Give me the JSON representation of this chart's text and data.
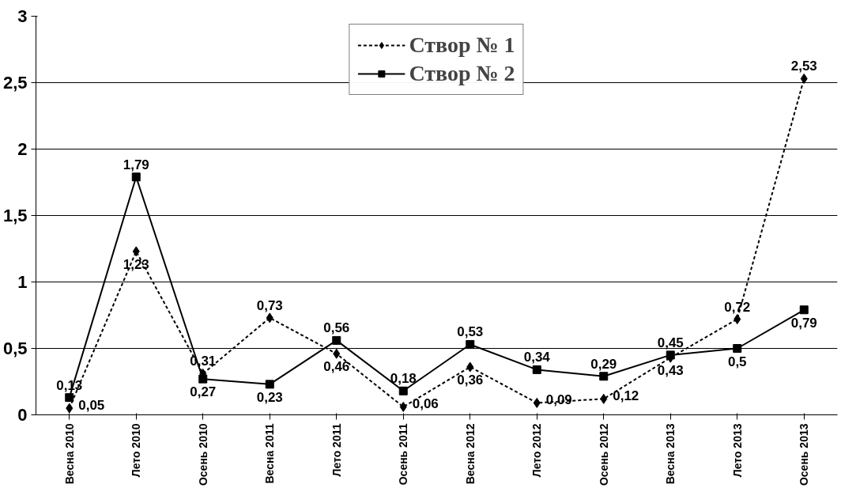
{
  "chart_data": {
    "type": "line",
    "categories": [
      "Весна 2010",
      "Лето 2010",
      "Осень 2010",
      "Весна 2011",
      "Лето 2011",
      "Осень 2011",
      "Весна 2012",
      "Лето 2012",
      "Осень 2012",
      "Весна 2013",
      "Лето 2013",
      "Осень 2013"
    ],
    "series": [
      {
        "name": "Створ № 1",
        "color": "#000000",
        "marker": "diamond",
        "line_style": "dashed",
        "values": [
          0.05,
          1.23,
          0.31,
          0.73,
          0.46,
          0.06,
          0.36,
          0.09,
          0.12,
          0.43,
          0.72,
          2.53
        ],
        "value_labels": [
          "0,05",
          "1,23",
          "0,31",
          "0,73",
          "0,46",
          "0,06",
          "0,36",
          "0,09",
          "0,12",
          "0,43",
          "0,72",
          "2,53"
        ]
      },
      {
        "name": "Створ № 2",
        "color": "#000000",
        "marker": "square",
        "line_style": "solid",
        "values": [
          0.13,
          1.79,
          0.27,
          0.23,
          0.56,
          0.18,
          0.53,
          0.34,
          0.29,
          0.45,
          0.5,
          0.79
        ],
        "value_labels": [
          "0,13",
          "1,79",
          "0,27",
          "0,23",
          "0,56",
          "0,18",
          "0,53",
          "0,34",
          "0,29",
          "0,45",
          "0,5",
          "0,79"
        ]
      }
    ],
    "ylim": [
      0,
      3
    ],
    "yticks": [
      0,
      {
        "value": 0.5,
        "label": "0,5"
      },
      1,
      {
        "value": 1.5,
        "label": "1,5"
      },
      2,
      {
        "value": 2.5,
        "label": "2,5"
      },
      3
    ],
    "grid": "y",
    "legend": "top"
  }
}
